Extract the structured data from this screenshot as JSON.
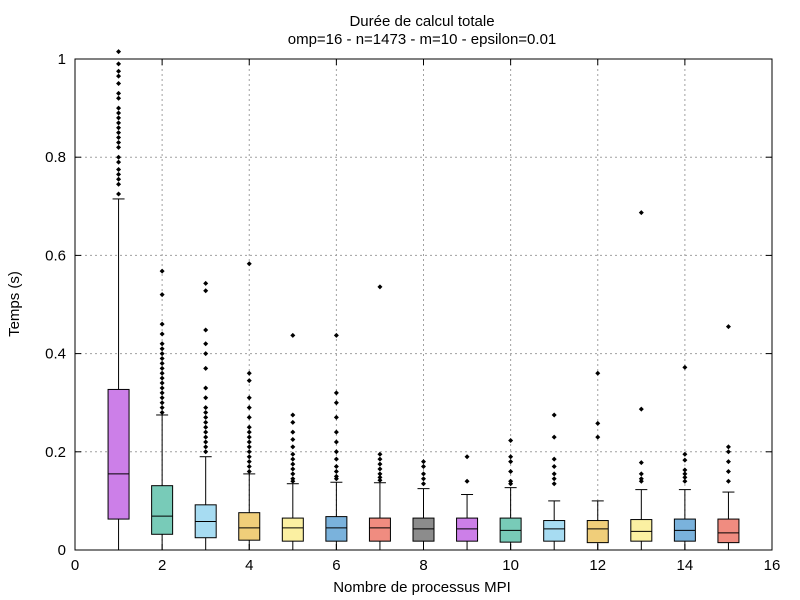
{
  "chart_data": {
    "type": "box",
    "title": "Durée de calcul totale",
    "subtitle": "omp=16 - n=1473 - m=10 - epsilon=0.01",
    "xlabel": "Nombre de processus MPI",
    "ylabel": "Temps (s)",
    "xlim": [
      0,
      16
    ],
    "ylim": [
      0,
      1
    ],
    "xticks": [
      0,
      2,
      4,
      6,
      8,
      10,
      12,
      14,
      16
    ],
    "yticks": [
      0,
      0.2,
      0.4,
      0.6,
      0.8,
      1
    ],
    "xtick_labels": [
      "0",
      "2",
      "4",
      "6",
      "8",
      "10",
      "12",
      "14",
      "16"
    ],
    "ytick_labels": [
      "0",
      "0.2",
      "0.4",
      "0.6",
      "0.8",
      "1"
    ],
    "grid": true,
    "boxes": [
      {
        "x": 1,
        "whisker_low": 0.0,
        "q1": 0.063,
        "median": 0.155,
        "q3": 0.327,
        "whisker_high": 0.715,
        "color": "#cc7fe8",
        "outliers": [
          1.015,
          0.99,
          0.975,
          0.965,
          0.95,
          0.93,
          0.92,
          0.9,
          0.89,
          0.88,
          0.87,
          0.86,
          0.85,
          0.84,
          0.83,
          0.82,
          0.8,
          0.79,
          0.775,
          0.765,
          0.755,
          0.745,
          0.725
        ]
      },
      {
        "x": 2,
        "whisker_low": 0.0,
        "q1": 0.032,
        "median": 0.069,
        "q3": 0.131,
        "whisker_high": 0.275,
        "color": "#78cbb8",
        "outliers": [
          0.568,
          0.52,
          0.46,
          0.44,
          0.42,
          0.41,
          0.4,
          0.39,
          0.38,
          0.37,
          0.36,
          0.35,
          0.34,
          0.33,
          0.32,
          0.31,
          0.3,
          0.29,
          0.28
        ]
      },
      {
        "x": 3,
        "whisker_low": 0.0,
        "q1": 0.025,
        "median": 0.058,
        "q3": 0.092,
        "whisker_high": 0.19,
        "color": "#a7dcf2",
        "outliers": [
          0.543,
          0.528,
          0.448,
          0.42,
          0.4,
          0.37,
          0.33,
          0.31,
          0.29,
          0.28,
          0.27,
          0.26,
          0.25,
          0.24,
          0.23,
          0.22,
          0.21,
          0.2
        ]
      },
      {
        "x": 4,
        "whisker_low": 0.0,
        "q1": 0.02,
        "median": 0.045,
        "q3": 0.076,
        "whisker_high": 0.155,
        "color": "#f0ce7a",
        "outliers": [
          0.583,
          0.36,
          0.345,
          0.31,
          0.29,
          0.27,
          0.25,
          0.24,
          0.23,
          0.22,
          0.21,
          0.2,
          0.19,
          0.18,
          0.17,
          0.16
        ]
      },
      {
        "x": 5,
        "whisker_low": 0.0,
        "q1": 0.018,
        "median": 0.045,
        "q3": 0.065,
        "whisker_high": 0.135,
        "color": "#fbf0a2",
        "outliers": [
          0.437,
          0.275,
          0.26,
          0.24,
          0.225,
          0.21,
          0.195,
          0.185,
          0.175,
          0.165,
          0.155,
          0.145,
          0.14
        ]
      },
      {
        "x": 6,
        "whisker_low": 0.0,
        "q1": 0.018,
        "median": 0.045,
        "q3": 0.068,
        "whisker_high": 0.138,
        "color": "#7ab2dc",
        "outliers": [
          0.437,
          0.32,
          0.3,
          0.27,
          0.24,
          0.22,
          0.2,
          0.185,
          0.17,
          0.16,
          0.15,
          0.145
        ]
      },
      {
        "x": 7,
        "whisker_low": 0.0,
        "q1": 0.018,
        "median": 0.045,
        "q3": 0.065,
        "whisker_high": 0.137,
        "color": "#f08c80",
        "outliers": [
          0.536,
          0.195,
          0.185,
          0.175,
          0.165,
          0.155,
          0.148,
          0.142
        ]
      },
      {
        "x": 8,
        "whisker_low": 0.0,
        "q1": 0.018,
        "median": 0.043,
        "q3": 0.065,
        "whisker_high": 0.125,
        "color": "#8c8c8c",
        "outliers": [
          0.18,
          0.17,
          0.155,
          0.145,
          0.135
        ]
      },
      {
        "x": 9,
        "whisker_low": 0.0,
        "q1": 0.018,
        "median": 0.043,
        "q3": 0.065,
        "whisker_high": 0.113,
        "color": "#cc7fe8",
        "outliers": [
          0.19,
          0.14
        ]
      },
      {
        "x": 10,
        "whisker_low": 0.0,
        "q1": 0.016,
        "median": 0.04,
        "q3": 0.065,
        "whisker_high": 0.127,
        "color": "#78cbb8",
        "outliers": [
          0.223,
          0.19,
          0.18,
          0.16,
          0.14,
          0.135
        ]
      },
      {
        "x": 11,
        "whisker_low": 0.0,
        "q1": 0.018,
        "median": 0.043,
        "q3": 0.06,
        "whisker_high": 0.1,
        "color": "#a7dcf2",
        "outliers": [
          0.275,
          0.23,
          0.185,
          0.17,
          0.155,
          0.145,
          0.135
        ]
      },
      {
        "x": 12,
        "whisker_low": 0.0,
        "q1": 0.015,
        "median": 0.043,
        "q3": 0.06,
        "whisker_high": 0.1,
        "color": "#f0ce7a",
        "outliers": [
          0.36,
          0.258,
          0.23
        ]
      },
      {
        "x": 13,
        "whisker_low": 0.0,
        "q1": 0.018,
        "median": 0.038,
        "q3": 0.062,
        "whisker_high": 0.123,
        "color": "#fbf0a2",
        "outliers": [
          0.687,
          0.287,
          0.178,
          0.155,
          0.145,
          0.14
        ]
      },
      {
        "x": 14,
        "whisker_low": 0.0,
        "q1": 0.018,
        "median": 0.04,
        "q3": 0.063,
        "whisker_high": 0.123,
        "color": "#7ab2dc",
        "outliers": [
          0.372,
          0.195,
          0.183,
          0.163,
          0.155,
          0.148,
          0.14
        ]
      },
      {
        "x": 15,
        "whisker_low": 0.0,
        "q1": 0.015,
        "median": 0.035,
        "q3": 0.063,
        "whisker_high": 0.118,
        "color": "#f08c80",
        "outliers": [
          0.455,
          0.21,
          0.2,
          0.18,
          0.16,
          0.14
        ]
      }
    ]
  }
}
